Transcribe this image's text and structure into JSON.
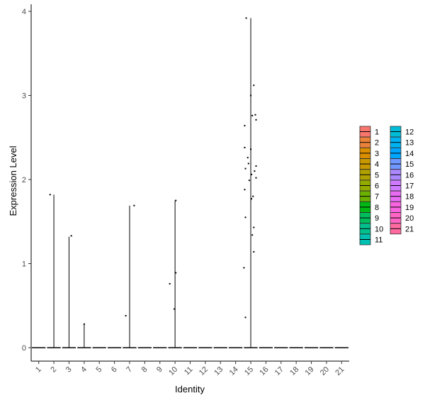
{
  "chart_data": {
    "type": "violin",
    "xlabel": "Identity",
    "ylabel": "Expression Level",
    "ylim": [
      -0.18,
      4.1
    ],
    "yticks": [
      0,
      1,
      2,
      3,
      4
    ],
    "categories": [
      "1",
      "2",
      "3",
      "4",
      "5",
      "6",
      "7",
      "8",
      "9",
      "10",
      "11",
      "12",
      "13",
      "14",
      "15",
      "16",
      "17",
      "18",
      "19",
      "20",
      "21"
    ],
    "violin_max": [
      0,
      1.82,
      1.32,
      0.28,
      0,
      0,
      1.69,
      0,
      0,
      1.75,
      0,
      0,
      0,
      0,
      3.92,
      0,
      0,
      0,
      0,
      0,
      0
    ],
    "points": [
      {
        "cat": "2",
        "dx": -0.25,
        "y": 1.82
      },
      {
        "cat": "3",
        "dx": 0.15,
        "y": 1.33
      },
      {
        "cat": "4",
        "dx": 0.0,
        "y": 0.28
      },
      {
        "cat": "7",
        "dx": -0.25,
        "y": 0.38
      },
      {
        "cat": "7",
        "dx": 0.3,
        "y": 1.69
      },
      {
        "cat": "10",
        "dx": -0.35,
        "y": 0.76
      },
      {
        "cat": "10",
        "dx": 0.05,
        "y": 0.89
      },
      {
        "cat": "10",
        "dx": -0.05,
        "y": 0.46
      },
      {
        "cat": "10",
        "dx": 0.05,
        "y": 1.75
      },
      {
        "cat": "15",
        "dx": -0.3,
        "y": 3.92
      },
      {
        "cat": "15",
        "dx": 0.2,
        "y": 3.12
      },
      {
        "cat": "15",
        "dx": 0.0,
        "y": 3.0
      },
      {
        "cat": "15",
        "dx": 0.1,
        "y": 2.76
      },
      {
        "cat": "15",
        "dx": 0.3,
        "y": 2.77
      },
      {
        "cat": "15",
        "dx": 0.35,
        "y": 2.71
      },
      {
        "cat": "15",
        "dx": -0.4,
        "y": 2.64
      },
      {
        "cat": "15",
        "dx": -0.4,
        "y": 2.38
      },
      {
        "cat": "15",
        "dx": 0.0,
        "y": 2.36
      },
      {
        "cat": "15",
        "dx": -0.2,
        "y": 2.26
      },
      {
        "cat": "15",
        "dx": -0.15,
        "y": 2.19
      },
      {
        "cat": "15",
        "dx": 0.35,
        "y": 2.16
      },
      {
        "cat": "15",
        "dx": -0.35,
        "y": 2.13
      },
      {
        "cat": "15",
        "dx": 0.25,
        "y": 2.1
      },
      {
        "cat": "15",
        "dx": 0.05,
        "y": 2.06
      },
      {
        "cat": "15",
        "dx": 0.35,
        "y": 2.02
      },
      {
        "cat": "15",
        "dx": -0.1,
        "y": 1.99
      },
      {
        "cat": "15",
        "dx": -0.4,
        "y": 1.88
      },
      {
        "cat": "15",
        "dx": 0.15,
        "y": 1.8
      },
      {
        "cat": "15",
        "dx": 0.05,
        "y": 1.77
      },
      {
        "cat": "15",
        "dx": -0.35,
        "y": 1.55
      },
      {
        "cat": "15",
        "dx": 0.2,
        "y": 1.43
      },
      {
        "cat": "15",
        "dx": 0.1,
        "y": 1.34
      },
      {
        "cat": "15",
        "dx": 0.2,
        "y": 1.14
      },
      {
        "cat": "15",
        "dx": -0.45,
        "y": 0.95
      },
      {
        "cat": "15",
        "dx": -0.35,
        "y": 0.36
      }
    ],
    "legend": {
      "placement": "right",
      "columns": [
        [
          "1",
          "2",
          "3",
          "4",
          "5",
          "6",
          "7",
          "8",
          "9",
          "10",
          "11"
        ],
        [
          "12",
          "13",
          "14",
          "15",
          "16",
          "17",
          "18",
          "19",
          "20",
          "21"
        ]
      ],
      "colors": {
        "1": "#F8766D",
        "2": "#EC8239",
        "3": "#DB8E00",
        "4": "#C79800",
        "5": "#AFA100",
        "6": "#93AA00",
        "7": "#6BB100",
        "8": "#00B813",
        "9": "#00BD5C",
        "10": "#00C08D",
        "11": "#00C1B2",
        "12": "#00BCD6",
        "13": "#00B3F2",
        "14": "#00A6FF",
        "15": "#6F97FF",
        "16": "#AC88FF",
        "17": "#D078FF",
        "18": "#E76BF3",
        "19": "#F863DF",
        "20": "#FF64C5",
        "21": "#FF6AA1"
      }
    }
  }
}
